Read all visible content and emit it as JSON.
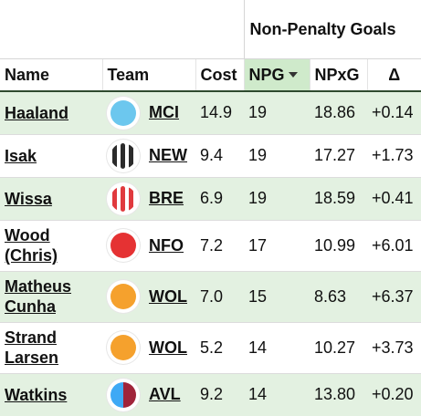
{
  "group_header": "Non-Penalty Goals",
  "columns": {
    "name": "Name",
    "team": "Team",
    "cost": "Cost",
    "npg": "NPG",
    "npxg": "NPxG",
    "delta": "Δ"
  },
  "rows": [
    {
      "name": "Haaland",
      "team": "MCI",
      "cost": "14.9",
      "npg": "19",
      "npxg": "18.86",
      "delta": "+0.14",
      "badge_icon": "solid-circle-icon",
      "badge_colors": [
        "#6cc7ee"
      ]
    },
    {
      "name": "Isak",
      "team": "NEW",
      "cost": "9.4",
      "npg": "19",
      "npxg": "17.27",
      "delta": "+1.73",
      "badge_icon": "striped-circle-icon",
      "badge_colors": [
        "#2b2b2b",
        "#ffffff"
      ]
    },
    {
      "name": "Wissa",
      "team": "BRE",
      "cost": "6.9",
      "npg": "19",
      "npxg": "18.59",
      "delta": "+0.41",
      "badge_icon": "striped-circle-icon",
      "badge_colors": [
        "#e03a3e",
        "#ffffff"
      ]
    },
    {
      "name": "Wood (Chris)",
      "team": "NFO",
      "cost": "7.2",
      "npg": "17",
      "npxg": "10.99",
      "delta": "+6.01",
      "badge_icon": "solid-circle-icon",
      "badge_colors": [
        "#e53233"
      ]
    },
    {
      "name": "Matheus Cunha",
      "team": "WOL",
      "cost": "7.0",
      "npg": "15",
      "npxg": "8.63",
      "delta": "+6.37",
      "badge_icon": "solid-circle-icon",
      "badge_colors": [
        "#f5a12d"
      ]
    },
    {
      "name": "Strand Larsen",
      "team": "WOL",
      "cost": "5.2",
      "npg": "14",
      "npxg": "10.27",
      "delta": "+3.73",
      "badge_icon": "solid-circle-icon",
      "badge_colors": [
        "#f5a12d"
      ]
    },
    {
      "name": "Watkins",
      "team": "AVL",
      "cost": "9.2",
      "npg": "14",
      "npxg": "13.80",
      "delta": "+0.20",
      "badge_icon": "split-circle-icon",
      "badge_colors": [
        "#3ea9f5",
        "#a0243a"
      ]
    }
  ]
}
